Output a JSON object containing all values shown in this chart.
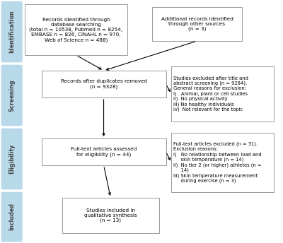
{
  "bg_color": "#ffffff",
  "sidebar_color": "#b8d9ea",
  "box_border_color": "#999999",
  "box_fill_color": "#ffffff",
  "box1_text": "Records identified through\ndatabase searching\n(total n = 10538, Pubmed n = 8254,\nEMBASE n = 826, CINAHL n = 970,\nWeb of Science n = 488)",
  "box2_text": "Additional records identified\nthrough other sources\n(n = 3)",
  "box3_text": "Records after duplicates removed\n(n = 9328)",
  "box4_text": "Studies excluded after title and\nabstract screening (n = 9284).\nGeneral reasons for exclusion:\ni)   Animal, plant or cell studies\nii)  No physical activity\niii) No healthy individuals\niv)  Not relevant for the topic",
  "box5_text": "Full-text articles assessed\nfor eligibility (n = 44)",
  "box6_text": "Full-text articles excluded (n = 31).\nExclusion reasons:\ni)   No relationship between load and\n     skin temperature (n = 14)\nii)  No tier 2 (or higher) athletes (n =\n     14)\niii) Skin temperature measurement\n     during exercise (n = 3)",
  "box7_text": "Studies included in\nqualitative synthesis\n(n = 13)",
  "font_size": 5.2,
  "sidebar_font_size": 5.8
}
